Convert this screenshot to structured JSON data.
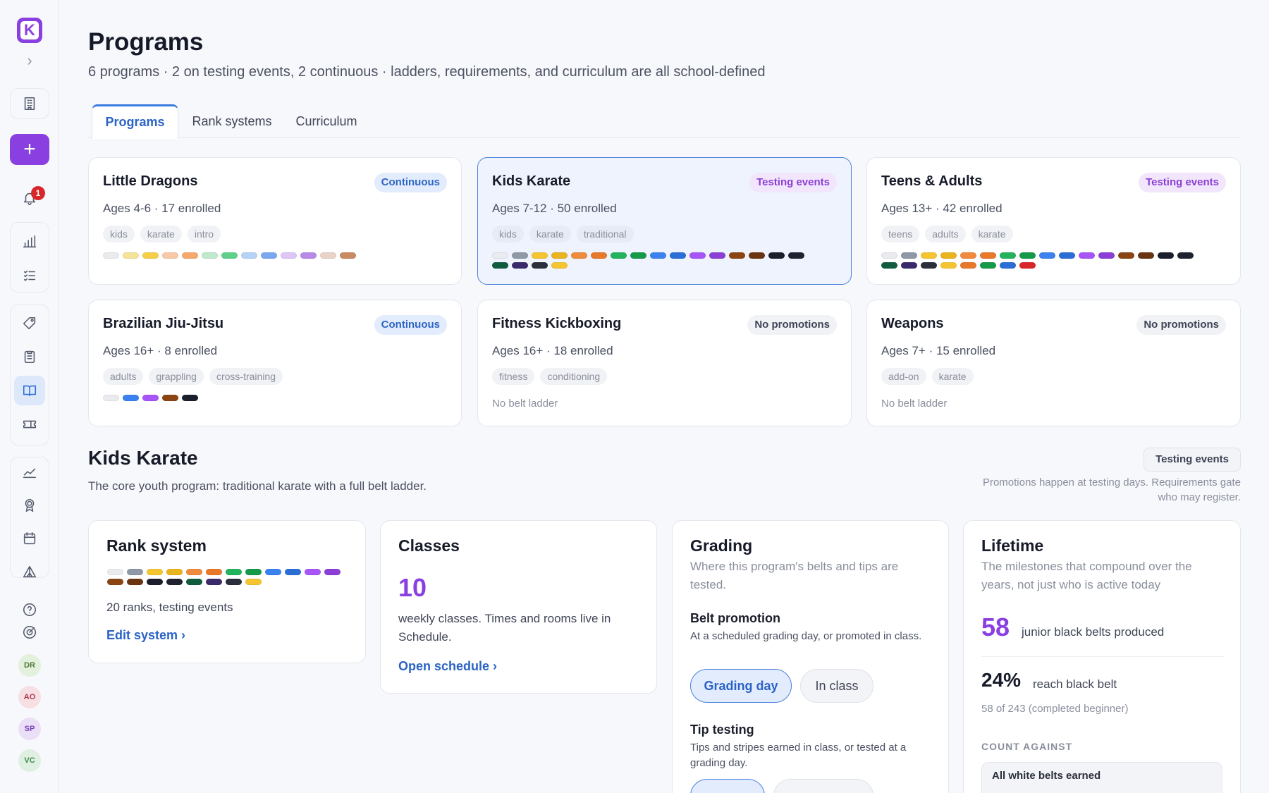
{
  "sidebar": {
    "logo_letter": "K",
    "notification_count": "1",
    "avatars": [
      {
        "initials": "DR",
        "bg": "#e3f0dc",
        "fg": "#4f7a3a"
      },
      {
        "initials": "AO",
        "bg": "#f6e0e4",
        "fg": "#b0384f"
      },
      {
        "initials": "SP",
        "bg": "#eadff6",
        "fg": "#7a46b6"
      },
      {
        "initials": "VC",
        "bg": "#dff0e2",
        "fg": "#3f8a4e"
      }
    ]
  },
  "header": {
    "title": "Programs",
    "subtitle": "6 programs · 2 on testing events, 2 continuous · ladders, requirements, and curriculum are all school-defined"
  },
  "tabs": [
    {
      "label": "Programs"
    },
    {
      "label": "Rank systems"
    },
    {
      "label": "Curriculum"
    }
  ],
  "programs": [
    {
      "name": "Little Dragons",
      "badge": "Continuous",
      "meta": "Ages 4-6 · 17 enrolled",
      "tags": [
        "kids",
        "karate",
        "intro"
      ],
      "belts": [
        "#e9ebef",
        "#f6e39a",
        "#f5cf4a",
        "#f7c9a7",
        "#f3aa6b",
        "#bfe8cd",
        "#5fd08a",
        "#b7d2f7",
        "#7aa8f0",
        "#ddc6f6",
        "#b88ae8",
        "#e9d3c6",
        "#c98a62"
      ],
      "nobelt": ""
    },
    {
      "name": "Kids Karate",
      "badge": "Testing events",
      "meta": "Ages 7-12 · 50 enrolled",
      "tags": [
        "kids",
        "karate",
        "traditional"
      ],
      "belts": [
        "#e9ebef",
        "#8f98a6",
        "#f5c531",
        "#e9b41f",
        "#f08a3c",
        "#e8782a",
        "#22b35c",
        "#159a4a",
        "#3b82f0",
        "#2b6fd6",
        "#a855f7",
        "#8b3fd6",
        "#8b4513",
        "#6b3410",
        "#1b1e2b",
        "#1f2230",
        "#0f5c3e",
        "#3b2a6b",
        "#2b2e3b",
        "#f5c531"
      ],
      "nobelt": ""
    },
    {
      "name": "Teens & Adults",
      "badge": "Testing events",
      "meta": "Ages 13+ · 42 enrolled",
      "tags": [
        "teens",
        "adults",
        "karate"
      ],
      "belts": [
        "#e9ebef",
        "#8f98a6",
        "#f5c531",
        "#e9b41f",
        "#f08a3c",
        "#e8782a",
        "#22b35c",
        "#159a4a",
        "#3b82f0",
        "#2b6fd6",
        "#a855f7",
        "#8b3fd6",
        "#8b4513",
        "#6b3410",
        "#1b1e2b",
        "#1f2230",
        "#0f5c3e",
        "#3b2a6b",
        "#2b2e3b",
        "#f5c531",
        "#e8782a",
        "#159a4a",
        "#2b6fd6",
        "#d9262b"
      ],
      "nobelt": ""
    },
    {
      "name": "Brazilian Jiu-Jitsu",
      "badge": "Continuous",
      "meta": "Ages 16+ · 8 enrolled",
      "tags": [
        "adults",
        "grappling",
        "cross-training"
      ],
      "belts": [
        "#e9ebef",
        "#3b82f0",
        "#a855f7",
        "#8b4513",
        "#1b1e2b"
      ],
      "nobelt": ""
    },
    {
      "name": "Fitness Kickboxing",
      "badge": "No promotions",
      "meta": "Ages 16+ · 18 enrolled",
      "tags": [
        "fitness",
        "conditioning"
      ],
      "belts": [],
      "nobelt": "No belt ladder"
    },
    {
      "name": "Weapons",
      "badge": "No promotions",
      "meta": "Ages 7+ · 15 enrolled",
      "tags": [
        "add-on",
        "karate"
      ],
      "belts": [],
      "nobelt": "No belt ladder"
    }
  ],
  "detail": {
    "title": "Kids Karate",
    "subtitle": "The core youth program: traditional karate with a full belt ladder.",
    "badge": "Testing events",
    "note": "Promotions happen at testing days. Requirements gate who may register.",
    "rank": {
      "title": "Rank system",
      "text": "20 ranks, testing events",
      "link": "Edit system ›"
    },
    "classes": {
      "title": "Classes",
      "count": "10",
      "text": "weekly classes. Times and rooms live in Schedule.",
      "link": "Open schedule ›"
    },
    "grading": {
      "title": "Grading",
      "desc": "Where this program's belts and tips are tested.",
      "belt_h": "Belt promotion",
      "belt_p": "At a scheduled grading day, or promoted in class.",
      "opt1": "Grading day",
      "opt2": "In class",
      "tip_h": "Tip testing",
      "tip_p": "Tips and stripes earned in class, or tested at a grading day."
    },
    "lifetime": {
      "title": "Lifetime",
      "desc": "The milestones that compound over the years, not just who is active today",
      "num1": "58",
      "text1": "junior black belts produced",
      "num2": "24%",
      "text2": "reach black belt",
      "sub2": "58 of 243 (completed beginner)",
      "count_label": "COUNT AGAINST",
      "count_option": "All white belts earned"
    }
  }
}
